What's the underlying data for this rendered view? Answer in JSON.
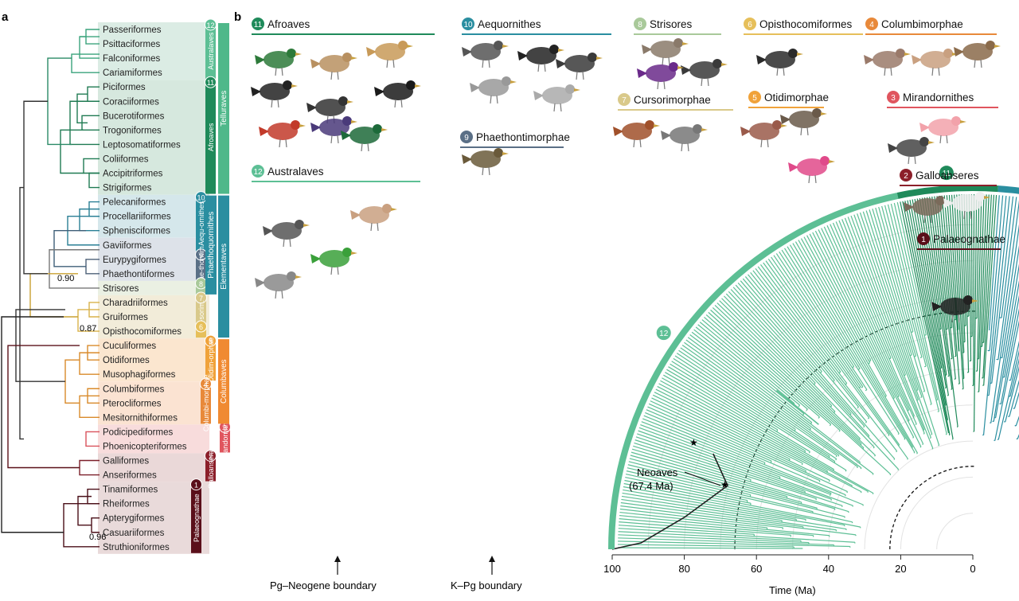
{
  "panel_a": {
    "label": "a",
    "orders": [
      "Passeriformes",
      "Psittaciformes",
      "Falconiformes",
      "Cariamiformes",
      "Piciformes",
      "Coraciiformes",
      "Bucerotiformes",
      "Trogoniformes",
      "Leptosomatiformes",
      "Coliiformes",
      "Accipitriformes",
      "Strigiformes",
      "Pelecaniformes",
      "Procellariiformes",
      "Sphenisciformes",
      "Gaviiformes",
      "Eurypygiformes",
      "Phaethontiformes",
      "Strisores",
      "Charadriiformes",
      "Gruiformes",
      "Opisthocomiformes",
      "Cuculiformes",
      "Otidiformes",
      "Musophagiformes",
      "Columbiformes",
      "Pterocliformes",
      "Mesitornithiformes",
      "Podicipediformes",
      "Phoenicopteriformes",
      "Galliformes",
      "Anseriformes",
      "Tinamiformes",
      "Rheiformes",
      "Apterygiformes",
      "Casuariiformes",
      "Struthioniformes"
    ],
    "support_values": [
      "0.90",
      "0.87",
      "0.96"
    ],
    "clades": [
      {
        "num": "12",
        "name": "Australaves",
        "color": "#5dbf95"
      },
      {
        "num": "11",
        "name": "Afroaves",
        "color": "#1f8a5a"
      },
      {
        "num": "10",
        "name": "Aequ-ornithes",
        "color": "#2a8ea0"
      },
      {
        "num": "9",
        "name": "Phae-thontim.",
        "color": "#5a6f86"
      },
      {
        "num": "8",
        "name": "",
        "color": "#a9c99a"
      },
      {
        "num": "7",
        "name": "Cur-sorim.",
        "color": "#d9c98a"
      },
      {
        "num": "6",
        "name": "",
        "color": "#e6bf5a"
      },
      {
        "num": "5",
        "name": "Otidim-orphae",
        "color": "#f0a23a"
      },
      {
        "num": "4",
        "name": "Columbi-morphae",
        "color": "#e8893a"
      },
      {
        "num": "3",
        "name": "Mirandornithes",
        "color": "#e0555e"
      },
      {
        "num": "2",
        "name": "Galloanseres",
        "color": "#8c1f2a"
      },
      {
        "num": "1",
        "name": "Palaeognathae",
        "color": "#5a0f1a"
      }
    ],
    "super_clades": {
      "telluraves": "Telluraves",
      "phaethoquornithes": "Phaethoquornithes",
      "elementaves": "Elementaves",
      "columbaves": "Columbaves"
    }
  },
  "panel_b": {
    "label": "b",
    "groups": [
      {
        "num": "11",
        "name": "Afroaves",
        "color": "#1f8a5a"
      },
      {
        "num": "10",
        "name": "Aequornithes",
        "color": "#2a8ea0"
      },
      {
        "num": "8",
        "name": "Strisores",
        "color": "#a9c99a"
      },
      {
        "num": "6",
        "name": "Opisthocomiformes",
        "color": "#e6bf5a"
      },
      {
        "num": "4",
        "name": "Columbimorphae",
        "color": "#e8893a"
      },
      {
        "num": "7",
        "name": "Cursorimorphae",
        "color": "#d9c98a"
      },
      {
        "num": "9",
        "name": "Phaethontimorphae",
        "color": "#5a6f86"
      },
      {
        "num": "5",
        "name": "Otidimorphae",
        "color": "#f0a23a"
      },
      {
        "num": "3",
        "name": "Mirandornithes",
        "color": "#e0555e"
      },
      {
        "num": "12",
        "name": "Australaves",
        "color": "#5dbf95"
      },
      {
        "num": "2",
        "name": "Galloanseres",
        "color": "#8c1f2a"
      },
      {
        "num": "1",
        "name": "Palaeognathae",
        "color": "#5a0f1a"
      }
    ],
    "neoaves_label": "Neoaves",
    "neoaves_age": "(67.4 Ma)",
    "boundary_pg_neogene": "Pg–Neogene boundary",
    "boundary_k_pg": "K–Pg boundary",
    "time_axis_label": "Time (Ma)",
    "time_ticks": [
      "100",
      "80",
      "60",
      "40",
      "20",
      "0"
    ]
  }
}
